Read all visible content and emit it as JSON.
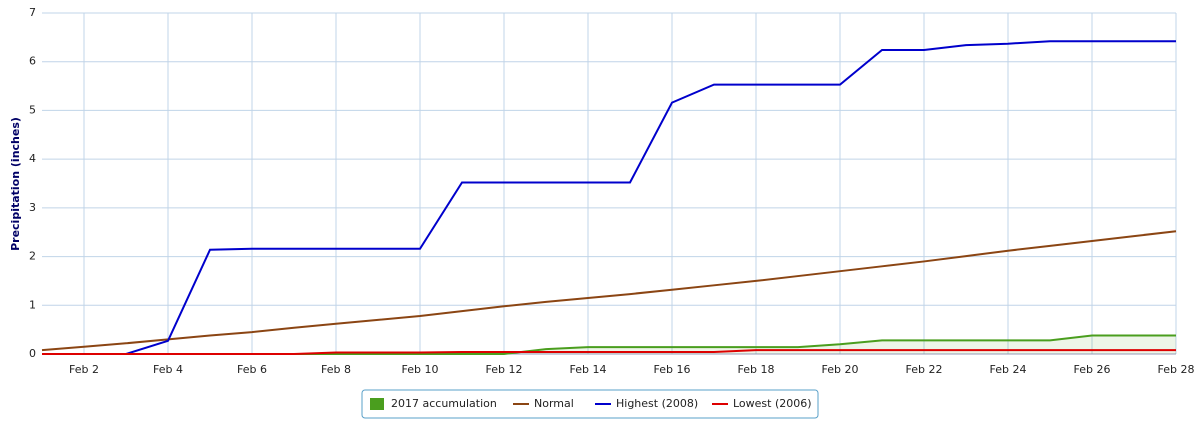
{
  "chart_data": {
    "type": "line",
    "y_label": "Precipitation (inches)",
    "categories": [
      null,
      "Feb 2",
      null,
      "Feb 4",
      null,
      "Feb 6",
      null,
      "Feb 8",
      null,
      "Feb 10",
      null,
      "Feb 12",
      null,
      "Feb 14",
      null,
      "Feb 16",
      null,
      "Feb 18",
      null,
      "Feb 20",
      null,
      "Feb 22",
      null,
      "Feb 24",
      null,
      "Feb 26",
      null,
      "Feb 28"
    ],
    "series": [
      {
        "name": "2017 accumulation",
        "color": "#4a9e1e",
        "area": true,
        "values": [
          0,
          0,
          0,
          0,
          0,
          0,
          0,
          0,
          0,
          0,
          0,
          0,
          0.1,
          0.14,
          0.14,
          0.14,
          0.14,
          0.14,
          0.14,
          0.2,
          0.28,
          0.28,
          0.28,
          0.28,
          0.28,
          0.38,
          0.38,
          0.38
        ]
      },
      {
        "name": "Normal",
        "color": "#8b4513",
        "values": [
          0.08,
          0.15,
          0.22,
          0.3,
          0.38,
          0.45,
          0.54,
          0.62,
          0.7,
          0.78,
          0.88,
          0.98,
          1.07,
          1.15,
          1.23,
          1.32,
          1.41,
          1.5,
          1.6,
          1.7,
          1.8,
          1.9,
          2.01,
          2.12,
          2.22,
          2.32,
          2.42,
          2.52
        ]
      },
      {
        "name": "Highest (2008)",
        "color": "#0000cc",
        "values": [
          0,
          0,
          0,
          0.27,
          2.14,
          2.16,
          2.16,
          2.16,
          2.16,
          2.16,
          3.52,
          3.52,
          3.52,
          3.52,
          3.52,
          5.16,
          5.53,
          5.53,
          5.53,
          5.53,
          6.24,
          6.24,
          6.34,
          6.37,
          6.42,
          6.42,
          6.42,
          6.42
        ]
      },
      {
        "name": "Lowest (2006)",
        "color": "#dd0000",
        "values": [
          0,
          0,
          0,
          0,
          0,
          0,
          0,
          0.03,
          0.03,
          0.03,
          0.04,
          0.04,
          0.04,
          0.04,
          0.04,
          0.04,
          0.04,
          0.08,
          0.08,
          0.08,
          0.08,
          0.08,
          0.08,
          0.08,
          0.08,
          0.08,
          0.08,
          0.08
        ]
      }
    ],
    "ylim": [
      0,
      7
    ],
    "yticks": [
      0,
      1,
      2,
      3,
      4,
      5,
      6,
      7
    ],
    "grid": true
  }
}
